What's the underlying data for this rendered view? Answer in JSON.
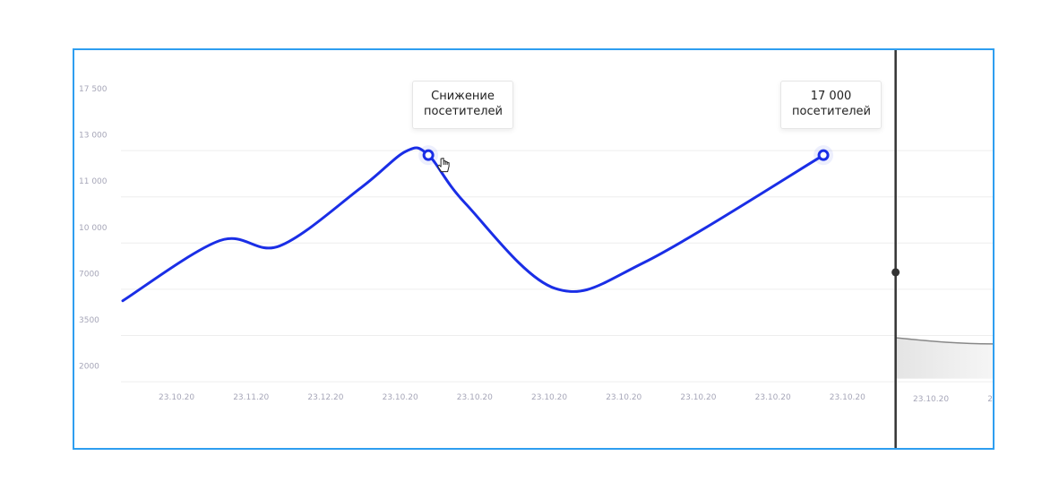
{
  "chart_data": {
    "type": "line",
    "title": "",
    "xlabel": "",
    "ylabel": "",
    "y_tick_labels": [
      "17 500",
      "13 000",
      "11 000",
      "10 000",
      "7000",
      "3500",
      "2000"
    ],
    "x_tick_labels": [
      "23.10.20",
      "23.11.20",
      "23.12.20",
      "23.10.20",
      "23.10.20",
      "23.10.20",
      "23.10.20",
      "23.10.20",
      "23.10.20",
      "23.10.20",
      "23.10.20",
      "23.10"
    ],
    "grid": true,
    "series": [
      {
        "color": "#1a2ee6",
        "points": [
          {
            "x": 0,
            "y": 6300
          },
          {
            "x": 1.3,
            "y": 10100
          },
          {
            "x": 2.1,
            "y": 9950
          },
          {
            "x": 3.2,
            "y": 11500
          },
          {
            "x": 3.8,
            "y": 13150
          },
          {
            "x": 4.1,
            "y": 12900
          },
          {
            "x": 4.6,
            "y": 10900
          },
          {
            "x": 5.8,
            "y": 7200
          },
          {
            "x": 7.0,
            "y": 8900
          },
          {
            "x": 9.4,
            "y": 12900
          }
        ]
      }
    ],
    "cursor_line": {
      "x": 10.2,
      "marker_value": 8250
    },
    "shaded_area": {
      "color": "#e6e6e6",
      "values": [
        3500,
        3300
      ]
    },
    "annotations": [
      {
        "id": "decline",
        "lines": [
          "Снижение",
          "посетителей"
        ]
      },
      {
        "id": "visitors",
        "lines": [
          "17 000",
          "посетителей"
        ]
      }
    ]
  },
  "colors": {
    "frame": "#2e9ef0",
    "line": "#1a2ee6",
    "grid": "#ededed",
    "cursor": "#333333"
  },
  "icons": {
    "cursor": "hand-pointer-icon"
  }
}
